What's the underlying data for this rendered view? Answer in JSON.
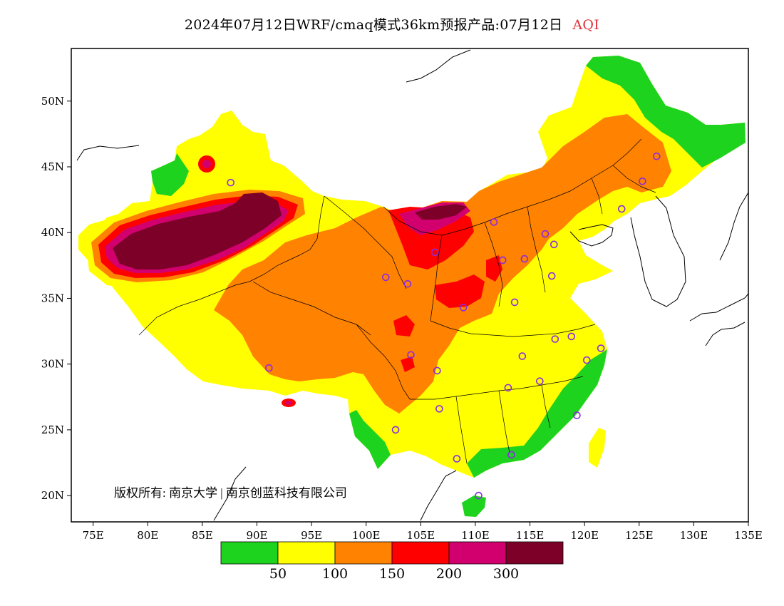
{
  "title": {
    "main": "2024年07月12日WRF/cmaq模式36km预报产品:07月12日",
    "variable": "AQI"
  },
  "map": {
    "lon_range": [
      73,
      135
    ],
    "lat_range": [
      18,
      54
    ],
    "lon_ticks": [
      {
        "value": 75,
        "label": "75E"
      },
      {
        "value": 80,
        "label": "80E"
      },
      {
        "value": 85,
        "label": "85E"
      },
      {
        "value": 90,
        "label": "90E"
      },
      {
        "value": 95,
        "label": "95E"
      },
      {
        "value": 100,
        "label": "100E"
      },
      {
        "value": 105,
        "label": "105E"
      },
      {
        "value": 110,
        "label": "110E"
      },
      {
        "value": 115,
        "label": "115E"
      },
      {
        "value": 120,
        "label": "120E"
      },
      {
        "value": 125,
        "label": "125E"
      },
      {
        "value": 130,
        "label": "130E"
      },
      {
        "value": 135,
        "label": "135E"
      }
    ],
    "lat_ticks": [
      {
        "value": 20,
        "label": "20N"
      },
      {
        "value": 25,
        "label": "25N"
      },
      {
        "value": 30,
        "label": "30N"
      },
      {
        "value": 35,
        "label": "35N"
      },
      {
        "value": 40,
        "label": "40N"
      },
      {
        "value": 45,
        "label": "45N"
      },
      {
        "value": 50,
        "label": "50N"
      }
    ],
    "copyright": "版权所有: 南京大学 | 南京创蓝科技有限公司"
  },
  "legend": {
    "colors": [
      "#1ed31e",
      "#ffff00",
      "#ff8200",
      "#ff0000",
      "#d2006e",
      "#7d0028"
    ],
    "labels": [
      "50",
      "100",
      "150",
      "200",
      "300"
    ]
  },
  "stations": [
    {
      "lon": 87.6,
      "lat": 43.8
    },
    {
      "lon": 91.1,
      "lat": 29.7
    },
    {
      "lon": 101.8,
      "lat": 36.6
    },
    {
      "lon": 103.8,
      "lat": 36.1
    },
    {
      "lon": 106.3,
      "lat": 38.5
    },
    {
      "lon": 111.7,
      "lat": 40.8
    },
    {
      "lon": 112.5,
      "lat": 37.9
    },
    {
      "lon": 114.5,
      "lat": 38.0
    },
    {
      "lon": 116.4,
      "lat": 39.9
    },
    {
      "lon": 117.2,
      "lat": 39.1
    },
    {
      "lon": 123.4,
      "lat": 41.8
    },
    {
      "lon": 125.3,
      "lat": 43.9
    },
    {
      "lon": 126.6,
      "lat": 45.8
    },
    {
      "lon": 117.0,
      "lat": 36.7
    },
    {
      "lon": 113.6,
      "lat": 34.7
    },
    {
      "lon": 108.9,
      "lat": 34.3
    },
    {
      "lon": 117.3,
      "lat": 31.9
    },
    {
      "lon": 118.8,
      "lat": 32.1
    },
    {
      "lon": 121.5,
      "lat": 31.2
    },
    {
      "lon": 120.2,
      "lat": 30.3
    },
    {
      "lon": 114.3,
      "lat": 30.6
    },
    {
      "lon": 115.9,
      "lat": 28.7
    },
    {
      "lon": 113.0,
      "lat": 28.2
    },
    {
      "lon": 106.5,
      "lat": 29.5
    },
    {
      "lon": 104.1,
      "lat": 30.7
    },
    {
      "lon": 106.7,
      "lat": 26.6
    },
    {
      "lon": 102.7,
      "lat": 25.0
    },
    {
      "lon": 108.3,
      "lat": 22.8
    },
    {
      "lon": 113.3,
      "lat": 23.1
    },
    {
      "lon": 119.3,
      "lat": 26.1
    },
    {
      "lon": 110.3,
      "lat": 20.0
    }
  ]
}
